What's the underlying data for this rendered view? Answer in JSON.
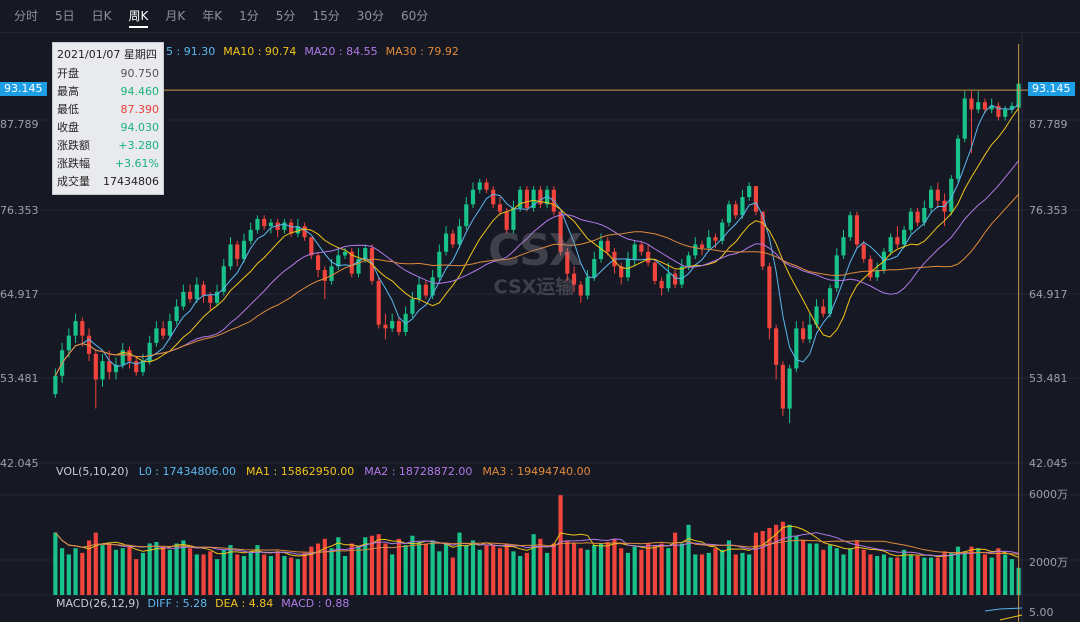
{
  "tabs": [
    "分时",
    "5日",
    "日K",
    "周K",
    "月K",
    "年K",
    "1分",
    "5分",
    "15分",
    "30分",
    "60分"
  ],
  "active_tab": "周K",
  "tooltip": {
    "date": "2021/01/07 星期四",
    "rows": [
      {
        "label": "开盘",
        "value": "90.750",
        "tone": "neutral"
      },
      {
        "label": "最高",
        "value": "94.460",
        "tone": "up"
      },
      {
        "label": "最低",
        "value": "87.390",
        "tone": "down"
      },
      {
        "label": "收盘",
        "value": "94.030",
        "tone": "up"
      },
      {
        "label": "涨跌额",
        "value": "+3.280",
        "tone": "up"
      },
      {
        "label": "涨跌幅",
        "value": "+3.61%",
        "tone": "up"
      },
      {
        "label": "成交量",
        "value": "17434806",
        "tone": "dark"
      }
    ]
  },
  "ma_legend": [
    {
      "text": "5 : 91.30",
      "color": "#5ab8f0"
    },
    {
      "text": "MA10 : 90.74",
      "color": "#f0c419"
    },
    {
      "text": "MA20 : 84.55",
      "color": "#b07ae8"
    },
    {
      "text": "MA30 : 79.92",
      "color": "#e08a3c"
    }
  ],
  "vol_legend": [
    {
      "text": "VOL(5,10,20)",
      "color": "#c8ccd4"
    },
    {
      "text": "L0 : 17434806.00",
      "color": "#5ab8f0"
    },
    {
      "text": "MA1 : 15862950.00",
      "color": "#f0c419"
    },
    {
      "text": "MA2 : 18728872.00",
      "color": "#b07ae8"
    },
    {
      "text": "MA3 : 19494740.00",
      "color": "#e08a3c"
    }
  ],
  "macd_legend": [
    {
      "text": "MACD(26,12,9)",
      "color": "#c8ccd4"
    },
    {
      "text": "DIFF : 5.28",
      "color": "#5ab8f0"
    },
    {
      "text": "DEA : 4.84",
      "color": "#f0c419"
    },
    {
      "text": "MACD : 0.88",
      "color": "#b07ae8"
    }
  ],
  "price_axis": {
    "ticks": [
      "87.789",
      "76.353",
      "64.917",
      "53.481",
      "42.045"
    ],
    "current": "93.145"
  },
  "vol_axis": {
    "ticks": [
      "6000万",
      "2000万"
    ]
  },
  "macd_axis": {
    "ticks": [
      "5.00"
    ]
  },
  "watermark": {
    "logo": "CSX",
    "text": "CSX运输"
  },
  "colors": {
    "up": "#19c28a",
    "down": "#f0443c",
    "ma5": "#5ab8f0",
    "ma10": "#f0c419",
    "ma20": "#b07ae8",
    "ma30": "#e08a3c",
    "crosshair": "#c89a4a",
    "bg": "#161823"
  },
  "chart_data": {
    "type": "candlestick",
    "price_range": [
      42.045,
      99.2
    ],
    "volume_range_wan": [
      0,
      7500
    ],
    "current_price": 93.145,
    "candles": [
      {
        "o": 51.5,
        "c": 54.0,
        "h": 55.0,
        "l": 51.0,
        "v": 4000
      },
      {
        "o": 54.0,
        "c": 57.5,
        "h": 58.5,
        "l": 53.0,
        "v": 3000
      },
      {
        "o": 57.5,
        "c": 59.5,
        "h": 60.5,
        "l": 56.5,
        "v": 2600
      },
      {
        "o": 59.5,
        "c": 61.5,
        "h": 62.5,
        "l": 58.5,
        "v": 3000
      },
      {
        "o": 61.5,
        "c": 59.5,
        "h": 62.0,
        "l": 58.0,
        "v": 2700
      },
      {
        "o": 59.5,
        "c": 57.0,
        "h": 60.5,
        "l": 56.0,
        "v": 3500
      },
      {
        "o": 57.0,
        "c": 53.5,
        "h": 57.5,
        "l": 49.5,
        "v": 4000
      },
      {
        "o": 53.5,
        "c": 56.0,
        "h": 57.0,
        "l": 52.5,
        "v": 3200
      },
      {
        "o": 56.0,
        "c": 54.5,
        "h": 57.5,
        "l": 53.5,
        "v": 3300
      },
      {
        "o": 54.5,
        "c": 55.5,
        "h": 56.5,
        "l": 53.5,
        "v": 2900
      },
      {
        "o": 55.5,
        "c": 57.5,
        "h": 58.5,
        "l": 55.0,
        "v": 3000
      },
      {
        "o": 57.5,
        "c": 56.0,
        "h": 58.0,
        "l": 55.0,
        "v": 3100
      },
      {
        "o": 56.0,
        "c": 54.5,
        "h": 56.5,
        "l": 54.0,
        "v": 2300
      },
      {
        "o": 54.5,
        "c": 56.0,
        "h": 57.0,
        "l": 54.0,
        "v": 2700
      },
      {
        "o": 56.0,
        "c": 58.5,
        "h": 59.5,
        "l": 55.5,
        "v": 3300
      },
      {
        "o": 58.5,
        "c": 60.5,
        "h": 61.5,
        "l": 58.0,
        "v": 3400
      },
      {
        "o": 60.5,
        "c": 59.5,
        "h": 61.5,
        "l": 59.0,
        "v": 3100
      },
      {
        "o": 59.5,
        "c": 61.5,
        "h": 62.5,
        "l": 59.0,
        "v": 2900
      },
      {
        "o": 61.5,
        "c": 63.5,
        "h": 64.5,
        "l": 61.0,
        "v": 3300
      },
      {
        "o": 63.5,
        "c": 65.5,
        "h": 66.5,
        "l": 63.0,
        "v": 3500
      },
      {
        "o": 65.5,
        "c": 64.5,
        "h": 66.5,
        "l": 64.0,
        "v": 3000
      },
      {
        "o": 64.5,
        "c": 66.5,
        "h": 67.5,
        "l": 64.0,
        "v": 2600
      },
      {
        "o": 66.5,
        "c": 65.0,
        "h": 67.0,
        "l": 64.0,
        "v": 2600
      },
      {
        "o": 65.0,
        "c": 64.0,
        "h": 65.5,
        "l": 63.0,
        "v": 2800
      },
      {
        "o": 64.0,
        "c": 65.5,
        "h": 66.5,
        "l": 63.5,
        "v": 2300
      },
      {
        "o": 65.5,
        "c": 69.0,
        "h": 70.0,
        "l": 65.0,
        "v": 2900
      },
      {
        "o": 69.0,
        "c": 72.0,
        "h": 73.0,
        "l": 68.5,
        "v": 3200
      },
      {
        "o": 72.0,
        "c": 70.0,
        "h": 72.5,
        "l": 69.0,
        "v": 2600
      },
      {
        "o": 70.0,
        "c": 72.5,
        "h": 73.5,
        "l": 69.5,
        "v": 2500
      },
      {
        "o": 72.5,
        "c": 74.0,
        "h": 75.0,
        "l": 72.0,
        "v": 2700
      },
      {
        "o": 74.0,
        "c": 75.5,
        "h": 76.0,
        "l": 73.5,
        "v": 3200
      },
      {
        "o": 75.5,
        "c": 74.5,
        "h": 76.0,
        "l": 74.0,
        "v": 2600
      },
      {
        "o": 74.5,
        "c": 75.0,
        "h": 75.5,
        "l": 73.5,
        "v": 2500
      },
      {
        "o": 75.0,
        "c": 74.0,
        "h": 75.5,
        "l": 73.0,
        "v": 2800
      },
      {
        "o": 74.0,
        "c": 75.0,
        "h": 75.5,
        "l": 73.5,
        "v": 2500
      },
      {
        "o": 75.0,
        "c": 73.5,
        "h": 75.5,
        "l": 73.0,
        "v": 2400
      },
      {
        "o": 73.5,
        "c": 74.5,
        "h": 75.5,
        "l": 73.0,
        "v": 2300
      },
      {
        "o": 74.5,
        "c": 73.0,
        "h": 75.0,
        "l": 72.5,
        "v": 2700
      },
      {
        "o": 73.0,
        "c": 70.5,
        "h": 73.0,
        "l": 70.0,
        "v": 3100
      },
      {
        "o": 70.5,
        "c": 68.5,
        "h": 71.0,
        "l": 67.5,
        "v": 3300
      },
      {
        "o": 68.5,
        "c": 67.0,
        "h": 69.0,
        "l": 64.5,
        "v": 3600
      },
      {
        "o": 67.0,
        "c": 69.0,
        "h": 70.0,
        "l": 66.5,
        "v": 3000
      },
      {
        "o": 69.0,
        "c": 70.5,
        "h": 71.5,
        "l": 68.5,
        "v": 3700
      },
      {
        "o": 70.5,
        "c": 71.0,
        "h": 71.5,
        "l": 70.0,
        "v": 2500
      },
      {
        "o": 71.0,
        "c": 68.0,
        "h": 71.5,
        "l": 67.5,
        "v": 3300
      },
      {
        "o": 68.0,
        "c": 70.0,
        "h": 71.5,
        "l": 67.5,
        "v": 3100
      },
      {
        "o": 70.0,
        "c": 71.5,
        "h": 72.0,
        "l": 69.5,
        "v": 3700
      },
      {
        "o": 71.5,
        "c": 67.0,
        "h": 72.0,
        "l": 66.5,
        "v": 3800
      },
      {
        "o": 67.0,
        "c": 61.0,
        "h": 67.5,
        "l": 60.5,
        "v": 3900
      },
      {
        "o": 61.0,
        "c": 60.5,
        "h": 62.5,
        "l": 59.0,
        "v": 3300
      },
      {
        "o": 60.5,
        "c": 61.5,
        "h": 62.5,
        "l": 60.0,
        "v": 2600
      },
      {
        "o": 61.5,
        "c": 60.0,
        "h": 62.0,
        "l": 59.5,
        "v": 3600
      },
      {
        "o": 60.0,
        "c": 62.5,
        "h": 63.5,
        "l": 59.5,
        "v": 3200
      },
      {
        "o": 62.5,
        "c": 64.5,
        "h": 65.5,
        "l": 62.0,
        "v": 3800
      },
      {
        "o": 64.5,
        "c": 66.5,
        "h": 67.5,
        "l": 64.0,
        "v": 3400
      },
      {
        "o": 66.5,
        "c": 65.0,
        "h": 67.0,
        "l": 64.5,
        "v": 3300
      },
      {
        "o": 65.0,
        "c": 67.5,
        "h": 68.5,
        "l": 64.5,
        "v": 3500
      },
      {
        "o": 67.5,
        "c": 71.0,
        "h": 72.0,
        "l": 67.0,
        "v": 2800
      },
      {
        "o": 71.0,
        "c": 73.5,
        "h": 74.5,
        "l": 70.5,
        "v": 3300
      },
      {
        "o": 73.5,
        "c": 72.0,
        "h": 74.0,
        "l": 71.5,
        "v": 2400
      },
      {
        "o": 72.0,
        "c": 74.5,
        "h": 75.5,
        "l": 71.5,
        "v": 4000
      },
      {
        "o": 74.5,
        "c": 77.5,
        "h": 78.5,
        "l": 74.0,
        "v": 3200
      },
      {
        "o": 77.5,
        "c": 79.5,
        "h": 80.5,
        "l": 77.0,
        "v": 3500
      },
      {
        "o": 79.5,
        "c": 80.5,
        "h": 81.0,
        "l": 79.0,
        "v": 2900
      },
      {
        "o": 80.5,
        "c": 79.5,
        "h": 81.0,
        "l": 79.0,
        "v": 3200
      },
      {
        "o": 79.5,
        "c": 77.5,
        "h": 80.0,
        "l": 77.0,
        "v": 3200
      },
      {
        "o": 77.5,
        "c": 76.5,
        "h": 78.5,
        "l": 76.0,
        "v": 3000
      },
      {
        "o": 76.5,
        "c": 74.0,
        "h": 77.0,
        "l": 73.5,
        "v": 3300
      },
      {
        "o": 74.0,
        "c": 77.0,
        "h": 78.0,
        "l": 73.5,
        "v": 2800
      },
      {
        "o": 77.0,
        "c": 79.5,
        "h": 80.0,
        "l": 76.5,
        "v": 2500
      },
      {
        "o": 79.5,
        "c": 77.0,
        "h": 80.0,
        "l": 76.5,
        "v": 2700
      },
      {
        "o": 77.0,
        "c": 79.5,
        "h": 80.0,
        "l": 76.5,
        "v": 3900
      },
      {
        "o": 79.5,
        "c": 77.5,
        "h": 80.0,
        "l": 77.0,
        "v": 3600
      },
      {
        "o": 77.5,
        "c": 79.5,
        "h": 80.0,
        "l": 77.0,
        "v": 2700
      },
      {
        "o": 79.5,
        "c": 76.5,
        "h": 80.0,
        "l": 76.0,
        "v": 3300
      },
      {
        "o": 76.5,
        "c": 71.0,
        "h": 76.5,
        "l": 70.5,
        "v": 6400
      },
      {
        "o": 71.0,
        "c": 68.0,
        "h": 71.5,
        "l": 67.0,
        "v": 3500
      },
      {
        "o": 68.0,
        "c": 66.5,
        "h": 69.0,
        "l": 65.5,
        "v": 3300
      },
      {
        "o": 66.5,
        "c": 65.0,
        "h": 67.0,
        "l": 64.0,
        "v": 3000
      },
      {
        "o": 65.0,
        "c": 67.5,
        "h": 68.5,
        "l": 64.5,
        "v": 2900
      },
      {
        "o": 67.5,
        "c": 70.0,
        "h": 71.0,
        "l": 67.0,
        "v": 3200
      },
      {
        "o": 70.0,
        "c": 72.5,
        "h": 73.5,
        "l": 69.5,
        "v": 3300
      },
      {
        "o": 72.5,
        "c": 71.0,
        "h": 73.0,
        "l": 70.5,
        "v": 3400
      },
      {
        "o": 71.0,
        "c": 69.0,
        "h": 71.5,
        "l": 68.0,
        "v": 3600
      },
      {
        "o": 69.0,
        "c": 67.5,
        "h": 69.5,
        "l": 66.5,
        "v": 3000
      },
      {
        "o": 67.5,
        "c": 70.0,
        "h": 71.0,
        "l": 67.0,
        "v": 2700
      },
      {
        "o": 70.0,
        "c": 72.0,
        "h": 72.5,
        "l": 69.0,
        "v": 3100
      },
      {
        "o": 72.0,
        "c": 71.0,
        "h": 72.5,
        "l": 70.5,
        "v": 2900
      },
      {
        "o": 71.0,
        "c": 69.5,
        "h": 72.0,
        "l": 69.0,
        "v": 3300
      },
      {
        "o": 69.5,
        "c": 67.0,
        "h": 70.0,
        "l": 66.5,
        "v": 3200
      },
      {
        "o": 67.0,
        "c": 66.0,
        "h": 67.5,
        "l": 65.0,
        "v": 3300
      },
      {
        "o": 66.0,
        "c": 68.0,
        "h": 69.5,
        "l": 65.5,
        "v": 3000
      },
      {
        "o": 68.0,
        "c": 66.5,
        "h": 68.5,
        "l": 66.0,
        "v": 4000
      },
      {
        "o": 66.5,
        "c": 69.0,
        "h": 70.0,
        "l": 66.0,
        "v": 3300
      },
      {
        "o": 69.0,
        "c": 70.5,
        "h": 71.0,
        "l": 68.5,
        "v": 4500
      },
      {
        "o": 70.5,
        "c": 72.0,
        "h": 73.0,
        "l": 70.0,
        "v": 2600
      },
      {
        "o": 72.0,
        "c": 71.5,
        "h": 72.5,
        "l": 70.5,
        "v": 2600
      },
      {
        "o": 71.5,
        "c": 73.0,
        "h": 74.0,
        "l": 71.0,
        "v": 2700
      },
      {
        "o": 73.0,
        "c": 72.5,
        "h": 73.5,
        "l": 71.5,
        "v": 3000
      },
      {
        "o": 72.5,
        "c": 75.0,
        "h": 75.5,
        "l": 72.0,
        "v": 2900
      },
      {
        "o": 75.0,
        "c": 77.5,
        "h": 78.0,
        "l": 74.5,
        "v": 3500
      },
      {
        "o": 77.5,
        "c": 76.0,
        "h": 78.0,
        "l": 75.5,
        "v": 2600
      },
      {
        "o": 76.0,
        "c": 78.5,
        "h": 79.5,
        "l": 75.5,
        "v": 2700
      },
      {
        "o": 78.5,
        "c": 80.0,
        "h": 80.5,
        "l": 78.0,
        "v": 2600
      },
      {
        "o": 80.0,
        "c": 76.5,
        "h": 80.0,
        "l": 76.0,
        "v": 4000
      },
      {
        "o": 76.5,
        "c": 69.0,
        "h": 76.5,
        "l": 68.5,
        "v": 4100
      },
      {
        "o": 69.0,
        "c": 60.5,
        "h": 69.5,
        "l": 59.0,
        "v": 4300
      },
      {
        "o": 60.5,
        "c": 55.5,
        "h": 61.0,
        "l": 53.5,
        "v": 4500
      },
      {
        "o": 55.5,
        "c": 49.5,
        "h": 56.0,
        "l": 48.5,
        "v": 4700
      },
      {
        "o": 49.5,
        "c": 55.0,
        "h": 55.5,
        "l": 47.5,
        "v": 4500
      },
      {
        "o": 55.0,
        "c": 60.5,
        "h": 61.5,
        "l": 54.5,
        "v": 3800
      },
      {
        "o": 60.5,
        "c": 59.0,
        "h": 61.5,
        "l": 58.5,
        "v": 3500
      },
      {
        "o": 59.0,
        "c": 61.0,
        "h": 62.5,
        "l": 58.5,
        "v": 3300
      },
      {
        "o": 61.0,
        "c": 63.5,
        "h": 64.5,
        "l": 60.5,
        "v": 3300
      },
      {
        "o": 63.5,
        "c": 62.5,
        "h": 64.5,
        "l": 62.0,
        "v": 2900
      },
      {
        "o": 62.5,
        "c": 66.0,
        "h": 66.5,
        "l": 62.0,
        "v": 3200
      },
      {
        "o": 66.0,
        "c": 70.5,
        "h": 71.5,
        "l": 65.5,
        "v": 3000
      },
      {
        "o": 70.5,
        "c": 73.0,
        "h": 74.0,
        "l": 70.0,
        "v": 2600
      },
      {
        "o": 73.0,
        "c": 76.0,
        "h": 76.5,
        "l": 72.5,
        "v": 3000
      },
      {
        "o": 76.0,
        "c": 72.0,
        "h": 76.5,
        "l": 71.5,
        "v": 3500
      },
      {
        "o": 72.0,
        "c": 70.0,
        "h": 72.5,
        "l": 69.5,
        "v": 2900
      },
      {
        "o": 70.0,
        "c": 67.5,
        "h": 70.5,
        "l": 67.0,
        "v": 2600
      },
      {
        "o": 67.5,
        "c": 68.5,
        "h": 69.5,
        "l": 67.0,
        "v": 2500
      },
      {
        "o": 68.5,
        "c": 71.0,
        "h": 71.5,
        "l": 68.0,
        "v": 2600
      },
      {
        "o": 71.0,
        "c": 73.0,
        "h": 73.5,
        "l": 70.5,
        "v": 2400
      },
      {
        "o": 73.0,
        "c": 72.0,
        "h": 74.5,
        "l": 71.5,
        "v": 2400
      },
      {
        "o": 72.0,
        "c": 74.0,
        "h": 74.5,
        "l": 71.5,
        "v": 2900
      },
      {
        "o": 74.0,
        "c": 76.5,
        "h": 77.0,
        "l": 73.5,
        "v": 2600
      },
      {
        "o": 76.5,
        "c": 75.0,
        "h": 77.0,
        "l": 74.5,
        "v": 2500
      },
      {
        "o": 75.0,
        "c": 77.0,
        "h": 78.0,
        "l": 74.5,
        "v": 2400
      },
      {
        "o": 77.0,
        "c": 79.5,
        "h": 80.0,
        "l": 76.5,
        "v": 2400
      },
      {
        "o": 79.5,
        "c": 78.0,
        "h": 80.5,
        "l": 77.0,
        "v": 2400
      },
      {
        "o": 78.0,
        "c": 76.5,
        "h": 79.0,
        "l": 74.5,
        "v": 2800
      },
      {
        "o": 76.5,
        "c": 81.0,
        "h": 81.5,
        "l": 76.0,
        "v": 2700
      },
      {
        "o": 81.0,
        "c": 86.5,
        "h": 87.0,
        "l": 80.5,
        "v": 3100
      },
      {
        "o": 86.5,
        "c": 92.0,
        "h": 93.0,
        "l": 86.0,
        "v": 2800
      },
      {
        "o": 92.0,
        "c": 90.5,
        "h": 93.0,
        "l": 84.5,
        "v": 3100
      },
      {
        "o": 90.5,
        "c": 91.5,
        "h": 93.0,
        "l": 90.0,
        "v": 3000
      },
      {
        "o": 91.5,
        "c": 90.5,
        "h": 92.0,
        "l": 90.0,
        "v": 2600
      },
      {
        "o": 90.5,
        "c": 91.0,
        "h": 92.0,
        "l": 90.0,
        "v": 2400
      },
      {
        "o": 91.0,
        "c": 89.5,
        "h": 91.5,
        "l": 89.0,
        "v": 3000
      },
      {
        "o": 89.5,
        "c": 90.5,
        "h": 91.0,
        "l": 89.0,
        "v": 2600
      },
      {
        "o": 90.5,
        "c": 91.0,
        "h": 91.5,
        "l": 90.0,
        "v": 2300
      },
      {
        "o": 90.75,
        "c": 94.03,
        "h": 94.46,
        "l": 87.39,
        "v": 1743
      }
    ]
  }
}
